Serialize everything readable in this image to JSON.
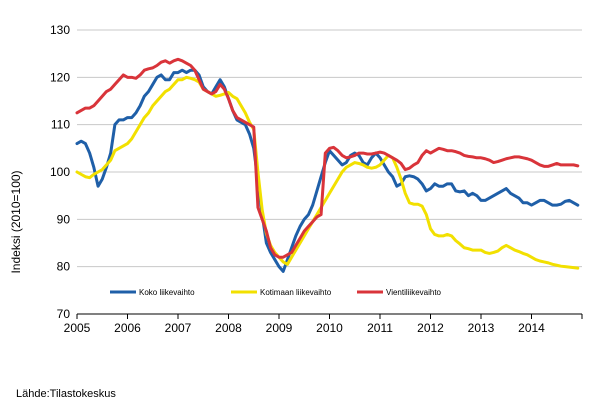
{
  "source_label": "Lähde:Tilastokeskus",
  "chart_data": {
    "type": "line",
    "title": "",
    "xlabel": "",
    "ylabel": "Indeksi (2010=100)",
    "ylim": [
      70,
      130
    ],
    "xlim": [
      2005,
      2015
    ],
    "yticks": [
      70,
      80,
      90,
      100,
      110,
      120,
      130
    ],
    "xtick_labels": [
      "2005",
      "2006",
      "2007",
      "2008",
      "2009",
      "2010",
      "2011",
      "2012",
      "2013",
      "2014"
    ],
    "grid": "horizontal",
    "legend_position": "bottom-left",
    "series": [
      {
        "name": "Koko liikevaihto",
        "color": "#1f5fa8",
        "x": [
          2005.0,
          2005.083,
          2005.167,
          2005.25,
          2005.333,
          2005.417,
          2005.5,
          2005.583,
          2005.667,
          2005.75,
          2005.833,
          2005.917,
          2006.0,
          2006.083,
          2006.167,
          2006.25,
          2006.333,
          2006.417,
          2006.5,
          2006.583,
          2006.667,
          2006.75,
          2006.833,
          2006.917,
          2007.0,
          2007.083,
          2007.167,
          2007.25,
          2007.333,
          2007.417,
          2007.5,
          2007.583,
          2007.667,
          2007.75,
          2007.833,
          2007.917,
          2008.0,
          2008.083,
          2008.167,
          2008.25,
          2008.333,
          2008.417,
          2008.5,
          2008.583,
          2008.667,
          2008.75,
          2008.833,
          2008.917,
          2009.0,
          2009.083,
          2009.167,
          2009.25,
          2009.333,
          2009.417,
          2009.5,
          2009.583,
          2009.667,
          2009.75,
          2009.833,
          2009.917,
          2010.0,
          2010.083,
          2010.167,
          2010.25,
          2010.333,
          2010.417,
          2010.5,
          2010.583,
          2010.667,
          2010.75,
          2010.833,
          2010.917,
          2011.0,
          2011.083,
          2011.167,
          2011.25,
          2011.333,
          2011.417,
          2011.5,
          2011.583,
          2011.667,
          2011.75,
          2011.833,
          2011.917,
          2012.0,
          2012.083,
          2012.167,
          2012.25,
          2012.333,
          2012.417,
          2012.5,
          2012.583,
          2012.667,
          2012.75,
          2012.833,
          2012.917,
          2013.0,
          2013.083,
          2013.167,
          2013.25,
          2013.333,
          2013.417,
          2013.5,
          2013.583,
          2013.667,
          2013.75,
          2013.833,
          2013.917,
          2014.0,
          2014.083,
          2014.167,
          2014.25,
          2014.333,
          2014.417,
          2014.5,
          2014.583,
          2014.667,
          2014.75,
          2014.833,
          2014.917
        ],
        "values": [
          106.0,
          106.5,
          106.0,
          104.0,
          101.0,
          97.0,
          98.5,
          101.0,
          104.0,
          110.0,
          111.0,
          111.0,
          111.5,
          111.5,
          112.5,
          114.0,
          116.0,
          117.0,
          118.5,
          120.0,
          120.5,
          119.5,
          119.5,
          121.0,
          121.0,
          121.5,
          121.0,
          121.5,
          121.5,
          120.5,
          118.0,
          117.0,
          116.5,
          118.0,
          119.5,
          118.0,
          115.5,
          113.0,
          111.0,
          110.5,
          110.0,
          108.0,
          105.0,
          98.0,
          91.0,
          85.0,
          83.0,
          81.5,
          80.0,
          79.0,
          81.5,
          84.0,
          86.5,
          88.5,
          90.0,
          91.0,
          93.0,
          96.0,
          99.0,
          102.0,
          104.5,
          103.5,
          102.5,
          101.5,
          102.0,
          103.5,
          104.0,
          103.5,
          102.0,
          101.5,
          103.0,
          104.0,
          103.0,
          101.5,
          100.0,
          99.0,
          97.0,
          97.5,
          99.0,
          99.2,
          99.0,
          98.5,
          97.5,
          96.0,
          96.5,
          97.5,
          97.0,
          97.0,
          97.5,
          97.5,
          96.0,
          95.8,
          96.0,
          95.0,
          95.5,
          95.0,
          94.0,
          94.0,
          94.5,
          95.0,
          95.5,
          96.0,
          96.5,
          95.5,
          95.0,
          94.5,
          93.5,
          93.5,
          93.0,
          93.5,
          94.0,
          94.0,
          93.5,
          93.0,
          93.0,
          93.2,
          93.8,
          94.0,
          93.5,
          93.0
        ]
      },
      {
        "name": "Kotimaan liikevaihto",
        "color": "#f2e000",
        "x": [
          2005.0,
          2005.083,
          2005.167,
          2005.25,
          2005.333,
          2005.417,
          2005.5,
          2005.583,
          2005.667,
          2005.75,
          2005.833,
          2005.917,
          2006.0,
          2006.083,
          2006.167,
          2006.25,
          2006.333,
          2006.417,
          2006.5,
          2006.583,
          2006.667,
          2006.75,
          2006.833,
          2006.917,
          2007.0,
          2007.083,
          2007.167,
          2007.25,
          2007.333,
          2007.417,
          2007.5,
          2007.583,
          2007.667,
          2007.75,
          2007.833,
          2007.917,
          2008.0,
          2008.083,
          2008.167,
          2008.25,
          2008.333,
          2008.417,
          2008.5,
          2008.583,
          2008.667,
          2008.75,
          2008.833,
          2008.917,
          2009.0,
          2009.083,
          2009.167,
          2009.25,
          2009.333,
          2009.417,
          2009.5,
          2009.583,
          2009.667,
          2009.75,
          2009.833,
          2009.917,
          2010.0,
          2010.083,
          2010.167,
          2010.25,
          2010.333,
          2010.417,
          2010.5,
          2010.583,
          2010.667,
          2010.75,
          2010.833,
          2010.917,
          2011.0,
          2011.083,
          2011.167,
          2011.25,
          2011.333,
          2011.417,
          2011.5,
          2011.583,
          2011.667,
          2011.75,
          2011.833,
          2011.917,
          2012.0,
          2012.083,
          2012.167,
          2012.25,
          2012.333,
          2012.417,
          2012.5,
          2012.583,
          2012.667,
          2012.75,
          2012.833,
          2012.917,
          2013.0,
          2013.083,
          2013.167,
          2013.25,
          2013.333,
          2013.417,
          2013.5,
          2013.583,
          2013.667,
          2013.75,
          2013.833,
          2013.917,
          2014.0,
          2014.083,
          2014.167,
          2014.25,
          2014.333,
          2014.417,
          2014.5,
          2014.583,
          2014.667,
          2014.75,
          2014.833,
          2014.917
        ],
        "values": [
          100.0,
          99.5,
          99.0,
          98.8,
          99.5,
          100.0,
          100.5,
          101.5,
          102.5,
          104.5,
          105.0,
          105.5,
          106.0,
          107.0,
          108.5,
          110.0,
          111.5,
          112.5,
          114.0,
          115.0,
          116.0,
          117.0,
          117.5,
          118.5,
          119.5,
          119.5,
          120.0,
          119.8,
          119.5,
          119.0,
          117.5,
          117.0,
          116.5,
          116.0,
          116.2,
          116.5,
          116.8,
          116.0,
          115.5,
          114.0,
          112.5,
          110.5,
          109.0,
          100.0,
          92.0,
          87.0,
          84.5,
          83.0,
          82.0,
          81.0,
          80.5,
          82.0,
          83.5,
          85.0,
          86.5,
          88.0,
          89.5,
          91.0,
          92.5,
          94.0,
          95.5,
          97.0,
          98.5,
          100.0,
          101.0,
          101.5,
          102.0,
          101.8,
          101.5,
          101.0,
          100.8,
          101.0,
          101.5,
          102.5,
          103.5,
          103.0,
          101.0,
          98.5,
          95.5,
          93.5,
          93.2,
          93.2,
          92.8,
          91.0,
          88.0,
          86.8,
          86.5,
          86.5,
          86.8,
          86.5,
          85.5,
          84.8,
          84.0,
          83.8,
          83.5,
          83.5,
          83.5,
          83.0,
          82.8,
          83.0,
          83.3,
          84.0,
          84.5,
          84.0,
          83.5,
          83.2,
          82.8,
          82.5,
          82.0,
          81.5,
          81.2,
          81.0,
          80.8,
          80.5,
          80.3,
          80.1,
          80.0,
          79.9,
          79.8,
          79.7
        ]
      },
      {
        "name": "Vientiliikevaihto",
        "color": "#d9343a",
        "x": [
          2005.0,
          2005.083,
          2005.167,
          2005.25,
          2005.333,
          2005.417,
          2005.5,
          2005.583,
          2005.667,
          2005.75,
          2005.833,
          2005.917,
          2006.0,
          2006.083,
          2006.167,
          2006.25,
          2006.333,
          2006.417,
          2006.5,
          2006.583,
          2006.667,
          2006.75,
          2006.833,
          2006.917,
          2007.0,
          2007.083,
          2007.167,
          2007.25,
          2007.333,
          2007.417,
          2007.5,
          2007.583,
          2007.667,
          2007.75,
          2007.833,
          2007.917,
          2008.0,
          2008.083,
          2008.167,
          2008.25,
          2008.333,
          2008.417,
          2008.5,
          2008.583,
          2008.667,
          2008.75,
          2008.833,
          2008.917,
          2009.0,
          2009.083,
          2009.167,
          2009.25,
          2009.333,
          2009.417,
          2009.5,
          2009.583,
          2009.667,
          2009.75,
          2009.833,
          2009.917,
          2010.0,
          2010.083,
          2010.167,
          2010.25,
          2010.333,
          2010.417,
          2010.5,
          2010.583,
          2010.667,
          2010.75,
          2010.833,
          2010.917,
          2011.0,
          2011.083,
          2011.167,
          2011.25,
          2011.333,
          2011.417,
          2011.5,
          2011.583,
          2011.667,
          2011.75,
          2011.833,
          2011.917,
          2012.0,
          2012.083,
          2012.167,
          2012.25,
          2012.333,
          2012.417,
          2012.5,
          2012.583,
          2012.667,
          2012.75,
          2012.833,
          2012.917,
          2013.0,
          2013.083,
          2013.167,
          2013.25,
          2013.333,
          2013.417,
          2013.5,
          2013.583,
          2013.667,
          2013.75,
          2013.833,
          2013.917,
          2014.0,
          2014.083,
          2014.167,
          2014.25,
          2014.333,
          2014.417,
          2014.5,
          2014.583,
          2014.667,
          2014.75,
          2014.833,
          2014.917
        ],
        "values": [
          112.5,
          113.0,
          113.5,
          113.5,
          114.0,
          115.0,
          116.0,
          117.0,
          117.5,
          118.5,
          119.5,
          120.5,
          120.0,
          120.0,
          119.8,
          120.5,
          121.5,
          121.8,
          122.0,
          122.5,
          123.2,
          123.5,
          123.0,
          123.5,
          123.8,
          123.5,
          123.0,
          122.5,
          121.5,
          119.5,
          117.5,
          117.0,
          116.5,
          117.0,
          118.5,
          117.5,
          115.5,
          113.0,
          111.5,
          111.0,
          110.5,
          110.0,
          109.5,
          92.5,
          90.0,
          87.5,
          84.0,
          82.5,
          82.0,
          82.0,
          82.5,
          83.0,
          84.5,
          86.0,
          87.5,
          88.5,
          89.5,
          90.5,
          91.0,
          104.0,
          105.0,
          105.2,
          104.5,
          103.5,
          103.0,
          103.2,
          103.5,
          104.0,
          104.0,
          103.8,
          103.8,
          104.0,
          104.2,
          104.0,
          103.5,
          103.0,
          102.5,
          101.8,
          100.5,
          100.8,
          101.5,
          102.0,
          103.5,
          104.5,
          104.0,
          104.5,
          105.0,
          104.8,
          104.5,
          104.5,
          104.3,
          104.0,
          103.5,
          103.3,
          103.2,
          103.0,
          103.0,
          102.8,
          102.5,
          102.0,
          102.2,
          102.5,
          102.8,
          103.0,
          103.2,
          103.2,
          103.0,
          102.8,
          102.5,
          102.0,
          101.5,
          101.2,
          101.2,
          101.5,
          101.8,
          101.5,
          101.5,
          101.5,
          101.5,
          101.3
        ]
      }
    ]
  }
}
